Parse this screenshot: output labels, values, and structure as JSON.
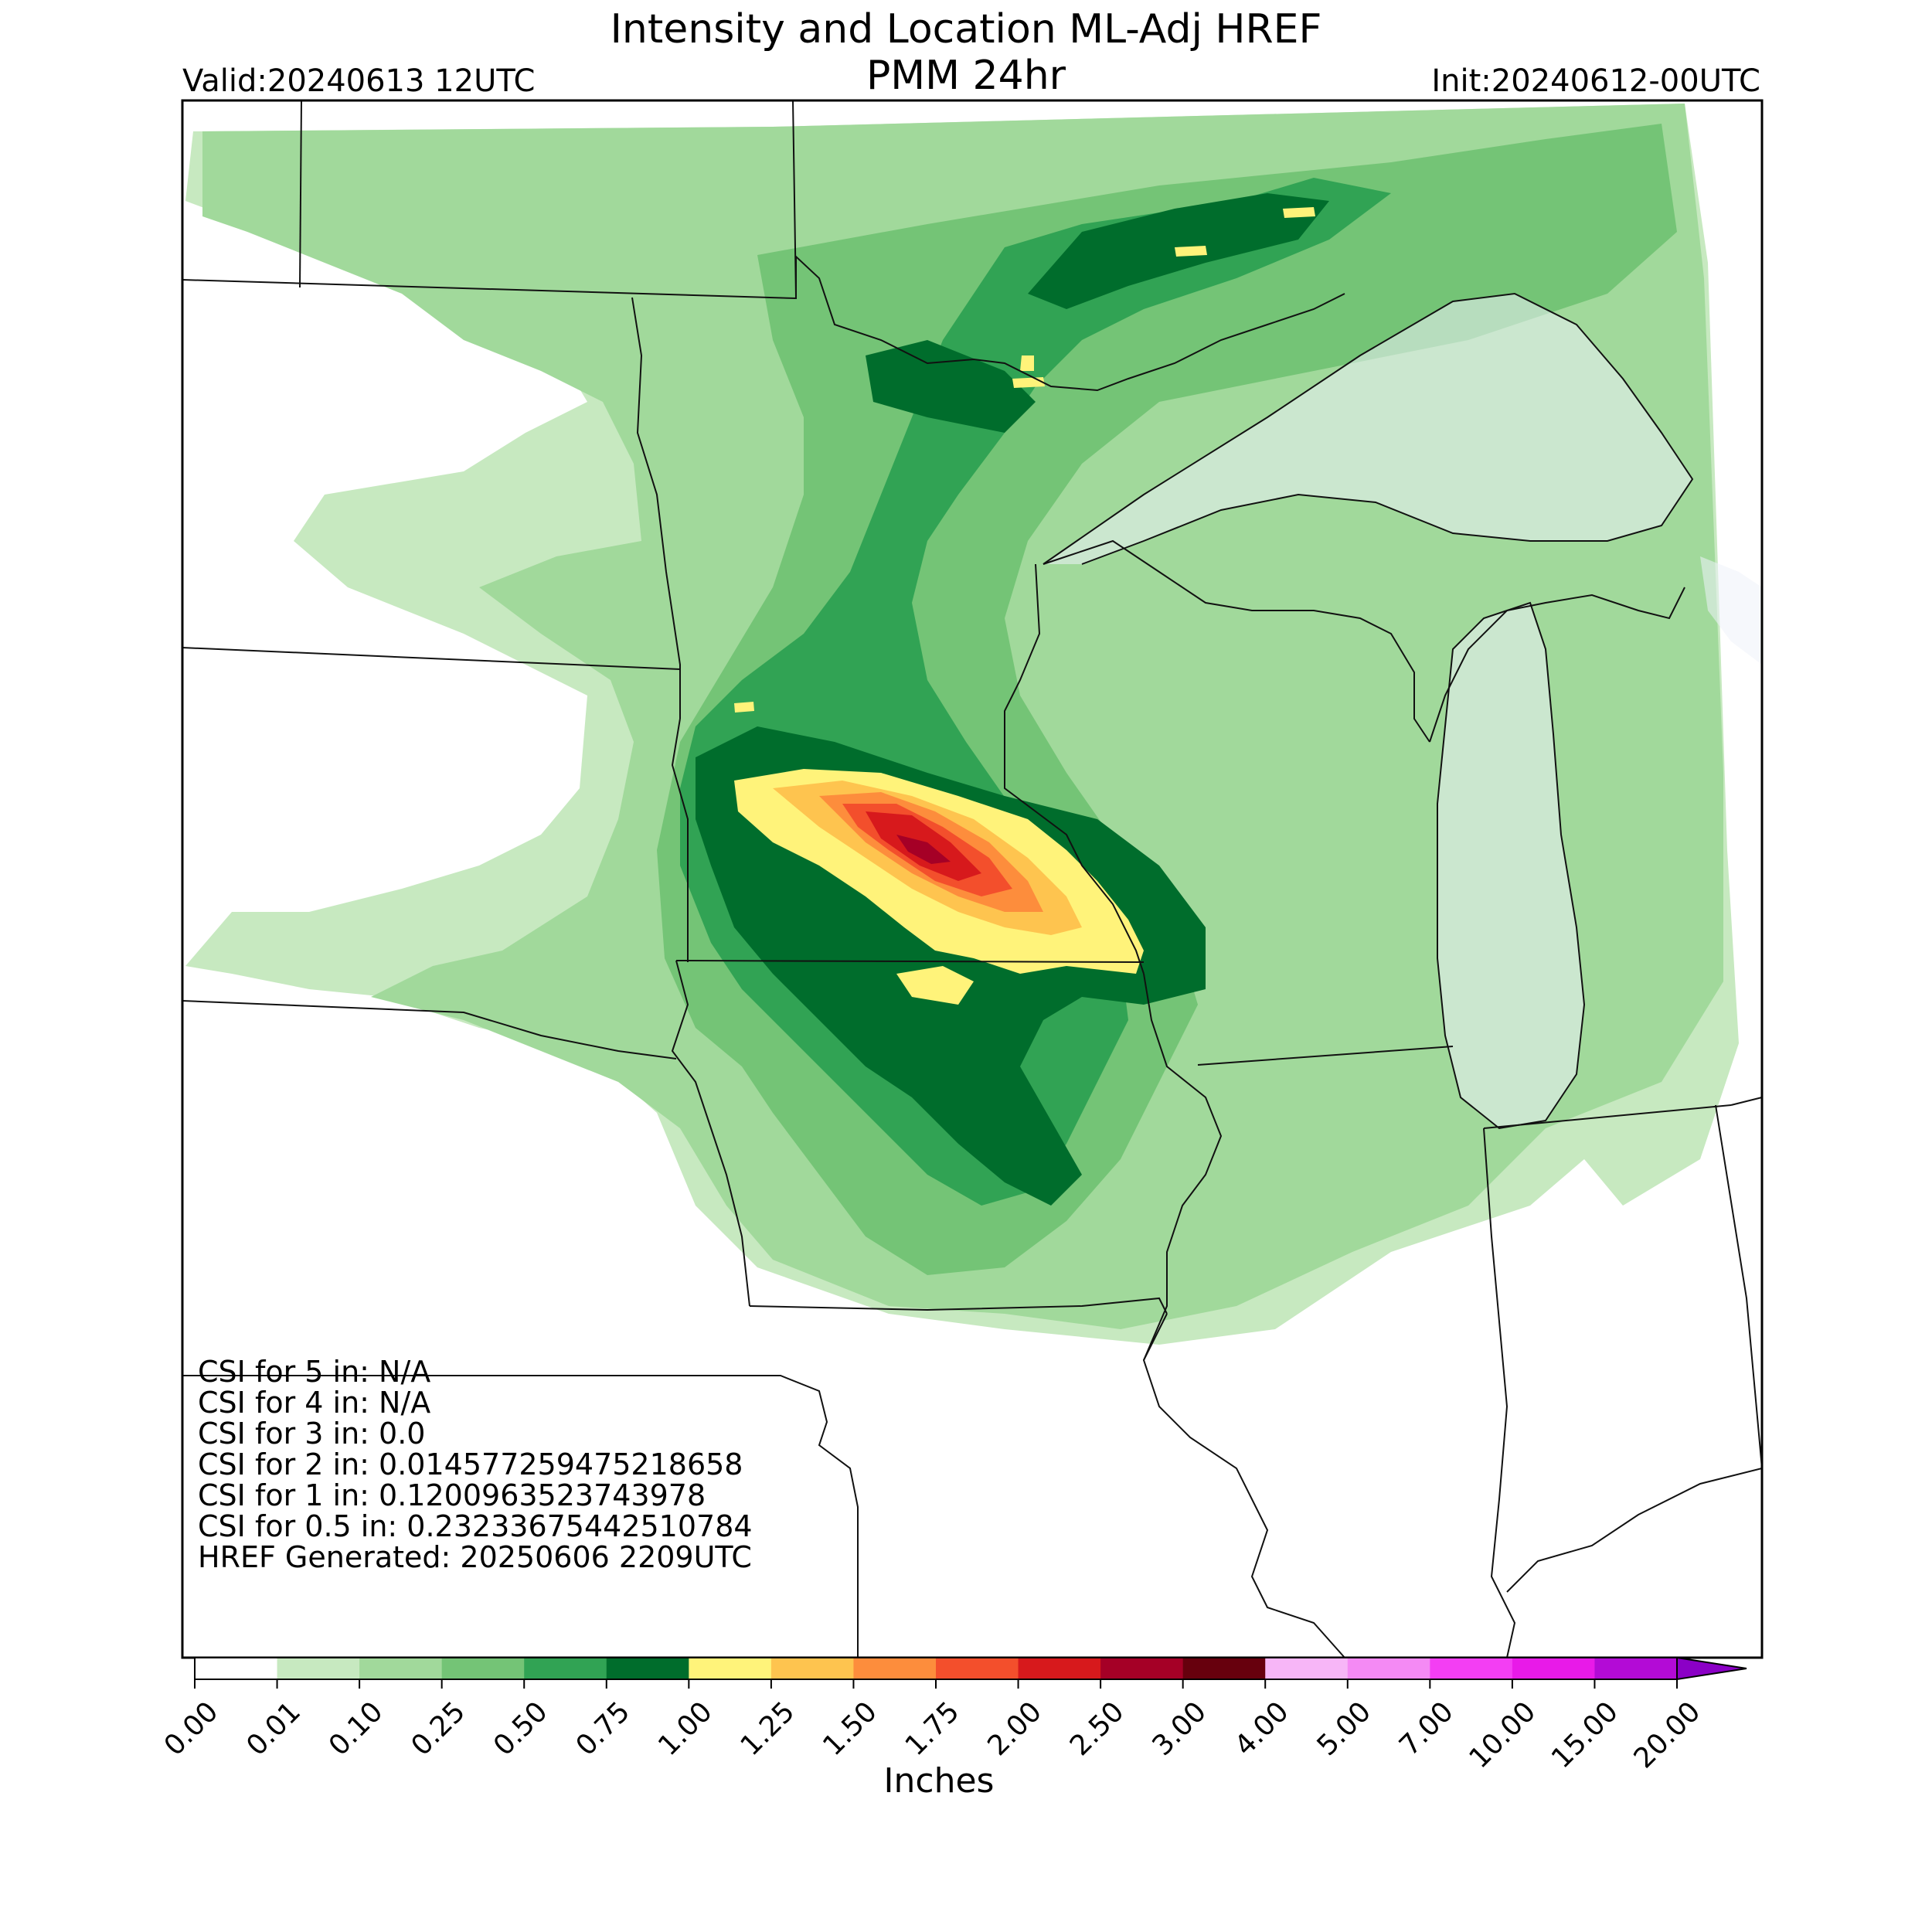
{
  "header": {
    "title_line1": "Intensity and Location ML-Adj HREF",
    "title_line2": "PMM 24hr",
    "valid": "Valid:20240613 12UTC",
    "init": "Init:20240612-00UTC"
  },
  "stats": [
    "CSI for 5 in: N/A",
    "CSI for 4 in: N/A",
    "CSI for 3 in: 0.0",
    "CSI for 2 in: 0.014577259475218658",
    "CSI for 1 in: 0.1200963523743978",
    "CSI for 0.5 in: 0.23233675442510784",
    "HREF Generated: 20250606 2209UTC"
  ],
  "colorbar": {
    "unit": "Inches",
    "ticks": [
      "0.00",
      "0.01",
      "0.10",
      "0.25",
      "0.50",
      "0.75",
      "1.00",
      "1.25",
      "1.50",
      "1.75",
      "2.00",
      "2.50",
      "3.00",
      "4.00",
      "5.00",
      "7.00",
      "10.00",
      "15.00",
      "20.00"
    ],
    "colors": [
      "#ffffff",
      "#c7e9c0",
      "#a1d99b",
      "#74c476",
      "#31a354",
      "#006d2c",
      "#fff37a",
      "#fec44f",
      "#fd8d3c",
      "#f34f2c",
      "#d7191c",
      "#a50026",
      "#67000d",
      "#f7b6f7",
      "#f48af4",
      "#f33ef3",
      "#e81ae8",
      "#b30bd6",
      "#8b00c6"
    ]
  },
  "map": {
    "colors": {
      "c001": "#c7e9c0",
      "c010": "#a1d99b",
      "c025": "#74c476",
      "c050": "#31a354",
      "c075": "#006d2c",
      "c100": "#fff37a",
      "c125": "#fec44f",
      "c150": "#fd8d3c",
      "c175": "#f34f2c",
      "c200": "#d7191c",
      "c250": "#a50026",
      "lake": "#eef3fa",
      "border": "#111111"
    }
  }
}
